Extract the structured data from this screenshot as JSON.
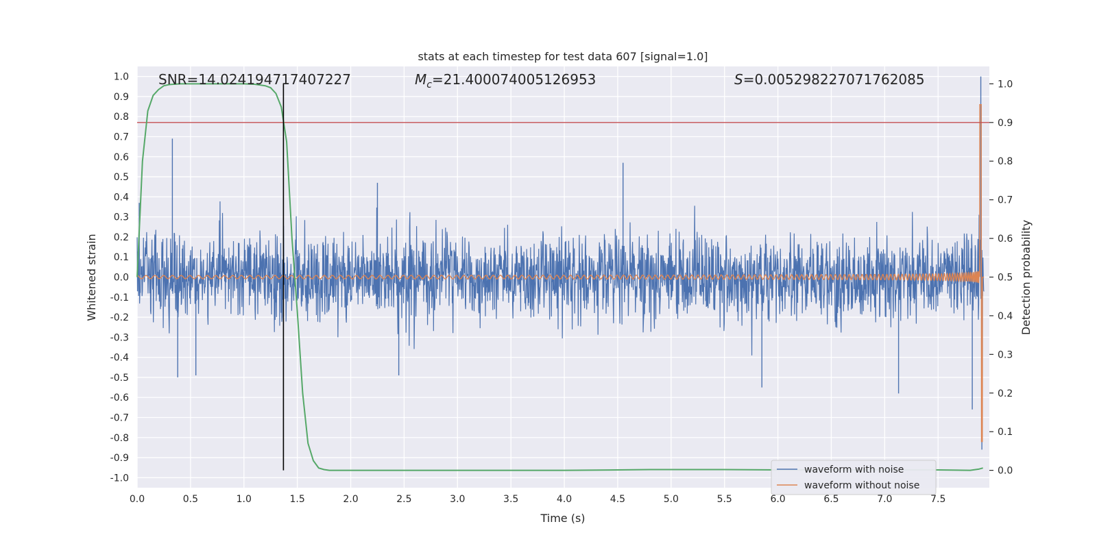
{
  "chart_data": {
    "type": "line",
    "title": "stats at each timestep for test data 607 [signal=1.0]",
    "xlabel": "Time (s)",
    "ylabel": "Whitened strain",
    "y2label": "Detection probability",
    "xlim": [
      0.0,
      7.98
    ],
    "ylim": [
      -1.05,
      1.05
    ],
    "y2lim": [
      -0.045,
      1.045
    ],
    "xticks": [
      "0.0",
      "0.5",
      "1.0",
      "1.5",
      "2.0",
      "2.5",
      "3.0",
      "3.5",
      "4.0",
      "4.5",
      "5.0",
      "5.5",
      "6.0",
      "6.5",
      "7.0",
      "7.5"
    ],
    "yticks": [
      "1.0",
      "0.9",
      "0.8",
      "0.7",
      "0.6",
      "0.5",
      "0.4",
      "0.3",
      "0.2",
      "0.1",
      "0.0",
      "-0.1",
      "-0.2",
      "-0.3",
      "-0.4",
      "-0.5",
      "-0.6",
      "-0.7",
      "-0.8",
      "-0.9",
      "-1.0"
    ],
    "y2ticks": [
      "1.0",
      "0.9",
      "0.8",
      "0.7",
      "0.6",
      "0.5",
      "0.4",
      "0.3",
      "0.2",
      "0.1",
      "0.0"
    ],
    "grid": true,
    "legend_position": "bottom-right",
    "annotations": {
      "snr": "SNR=14.024194717407227",
      "mc_symbol": "M",
      "mc_subscript": "c",
      "mc_value": "=21.400074005126953",
      "s_symbol": "S",
      "s_value": "=0.005298227071762085"
    },
    "threshold": {
      "value": 0.9,
      "axis": "right",
      "color": "#c44e52"
    },
    "vertical_marker": {
      "x": 1.37,
      "color": "#000000"
    },
    "series": [
      {
        "name": "waveform with noise",
        "axis": "left",
        "color": "#4c72b0",
        "noise_envelope": {
          "typical": 0.25,
          "peak": 0.4
        },
        "peaks": [
          {
            "x": 0.02,
            "y": 0.37
          },
          {
            "x": 0.33,
            "y": 0.69
          },
          {
            "x": 0.38,
            "y": -0.5
          },
          {
            "x": 0.55,
            "y": -0.49
          },
          {
            "x": 2.25,
            "y": 0.47
          },
          {
            "x": 2.45,
            "y": -0.49
          },
          {
            "x": 4.55,
            "y": 0.57
          },
          {
            "x": 5.85,
            "y": -0.55
          },
          {
            "x": 7.13,
            "y": -0.58
          },
          {
            "x": 7.82,
            "y": -0.66
          },
          {
            "x": 7.9,
            "y": 1.0
          },
          {
            "x": 7.91,
            "y": -0.86
          }
        ]
      },
      {
        "name": "waveform without noise",
        "axis": "left",
        "color": "#dd8452",
        "chirp": {
          "f0": 12,
          "f1": 60,
          "a0": 0.008,
          "t_merge": 7.92,
          "peak": 0.86,
          "trough": -0.82
        }
      },
      {
        "name": "",
        "axis": "right",
        "color": "#55a868",
        "x": [
          0.0,
          0.05,
          0.1,
          0.15,
          0.2,
          0.25,
          0.3,
          0.4,
          0.5,
          0.6,
          0.7,
          0.8,
          0.9,
          1.0,
          1.1,
          1.2,
          1.25,
          1.3,
          1.35,
          1.4,
          1.45,
          1.5,
          1.55,
          1.6,
          1.65,
          1.7,
          1.75,
          1.8,
          1.9,
          2.0,
          2.5,
          3.0,
          3.5,
          4.0,
          4.5,
          4.8,
          5.0,
          5.5,
          6.0,
          6.5,
          7.0,
          7.5,
          7.8,
          7.88,
          7.92
        ],
        "y": [
          0.5,
          0.8,
          0.93,
          0.97,
          0.985,
          0.995,
          0.998,
          1.0,
          1.0,
          1.0,
          1.0,
          1.0,
          1.0,
          1.0,
          0.999,
          0.995,
          0.99,
          0.975,
          0.94,
          0.85,
          0.6,
          0.41,
          0.2,
          0.07,
          0.025,
          0.006,
          0.002,
          0.0,
          0.0,
          0.0,
          0.0,
          0.0,
          0.0,
          0.0,
          0.001,
          0.002,
          0.002,
          0.002,
          0.001,
          0.001,
          0.001,
          0.001,
          0.0,
          0.003,
          0.006
        ]
      }
    ]
  }
}
